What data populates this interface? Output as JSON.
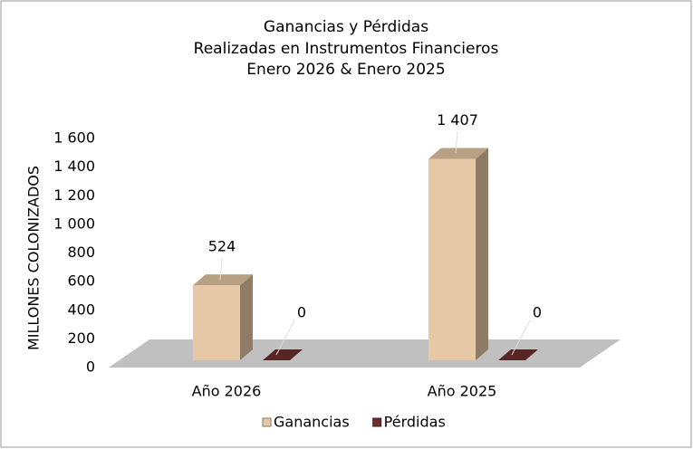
{
  "chart_data": {
    "type": "bar3d",
    "title": [
      "Ganancias y Pérdidas",
      "Realizadas en Instrumentos Financieros",
      "Enero 2026 & Enero 2025"
    ],
    "y_label": "MILLONES COLONIZADOS",
    "categories": [
      "Año 2026",
      "Año 2025"
    ],
    "series": [
      {
        "name": "Ganancias",
        "color": "#e6c8a6",
        "values": [
          524,
          1407
        ],
        "value_labels": [
          "524",
          "1 407"
        ]
      },
      {
        "name": "Pérdidas",
        "color": "#6e2e2e",
        "values": [
          0,
          0
        ]
      }
    ],
    "ylim": [
      0,
      1600
    ],
    "yticks": [
      0,
      200,
      400,
      600,
      800,
      {
        "value": 1000,
        "label": "1 000"
      },
      {
        "value": 1200,
        "label": "1 200"
      },
      {
        "value": 1400,
        "label": "1 400"
      },
      {
        "value": 1600,
        "label": "1 600"
      }
    ],
    "legend": "bottom"
  }
}
